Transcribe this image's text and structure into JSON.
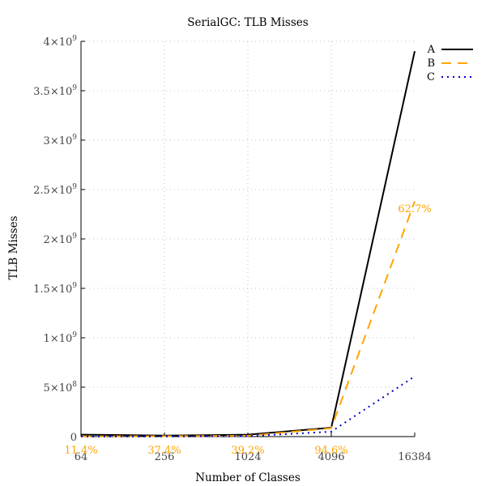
{
  "chart_data": {
    "type": "line",
    "title": "SerialGC: TLB Misses",
    "xlabel": "Number of Classes",
    "ylabel": "TLB Misses",
    "x": [
      64,
      256,
      1024,
      4096,
      16384
    ],
    "x_tick_labels": [
      "64",
      "256",
      "1024",
      "4096",
      "16384"
    ],
    "x_scale": "log2",
    "ylim": [
      0,
      4000000000
    ],
    "y_ticks": [
      0,
      500000000,
      1000000000,
      1500000000,
      2000000000,
      2500000000,
      3000000000,
      3500000000,
      4000000000
    ],
    "y_tick_labels": [
      {
        "mant": "0",
        "exp": ""
      },
      {
        "mant": "5×10",
        "exp": "8"
      },
      {
        "mant": "1×10",
        "exp": "9"
      },
      {
        "mant": "1.5×10",
        "exp": "9"
      },
      {
        "mant": "2×10",
        "exp": "9"
      },
      {
        "mant": "2.5×10",
        "exp": "9"
      },
      {
        "mant": "3×10",
        "exp": "9"
      },
      {
        "mant": "3.5×10",
        "exp": "9"
      },
      {
        "mant": "4×10",
        "exp": "9"
      }
    ],
    "grid": true,
    "legend_position": "top-right",
    "series": [
      {
        "name": "A",
        "color": "#000000",
        "dash": "solid",
        "values": [
          20000000,
          10000000,
          20000000,
          90000000,
          3900000000
        ]
      },
      {
        "name": "B",
        "color": "#ffa500",
        "dash": "dashed",
        "values": [
          2000000,
          4000000,
          8000000,
          85000000,
          2380000000
        ]
      },
      {
        "name": "C",
        "color": "#0000cc",
        "dash": "dotted",
        "values": [
          1000000,
          2000000,
          4000000,
          50000000,
          610000000
        ]
      }
    ],
    "annotations": [
      {
        "text": "11.4%",
        "x": 64,
        "color": "#ffa500"
      },
      {
        "text": "37.4%",
        "x": 256,
        "color": "#ffa500"
      },
      {
        "text": "39.2%",
        "x": 1024,
        "color": "#ffa500"
      },
      {
        "text": "94.6%",
        "x": 4096,
        "color": "#ffa500"
      },
      {
        "text": "62.7%",
        "x": 16384,
        "color": "#ffa500"
      }
    ]
  }
}
